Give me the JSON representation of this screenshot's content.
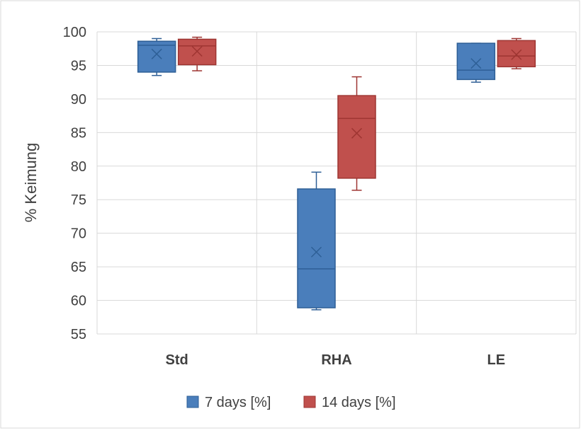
{
  "chart_data": {
    "type": "box",
    "title": "",
    "xlabel": "",
    "ylabel": "% Keimung",
    "ylim": [
      55,
      100
    ],
    "yticks": [
      "55",
      "60",
      "65",
      "70",
      "75",
      "80",
      "85",
      "90",
      "95",
      "100"
    ],
    "categories": [
      "Std",
      "RHA",
      "LE"
    ],
    "grid": true,
    "legend_position": "bottom",
    "series": [
      {
        "name": "7 days [%]",
        "color": "#4a7ebb",
        "boxes": [
          {
            "min": 93.5,
            "q1": 94.0,
            "median": 98.0,
            "q3": 98.6,
            "max": 99.0,
            "mean": 96.7
          },
          {
            "min": 58.6,
            "q1": 58.9,
            "median": 64.7,
            "q3": 76.6,
            "max": 79.1,
            "mean": 67.2
          },
          {
            "min": 92.5,
            "q1": 92.9,
            "median": 94.3,
            "q3": 98.3,
            "max": 98.3,
            "mean": 95.3
          }
        ]
      },
      {
        "name": "14 days [%]",
        "color": "#c0504d",
        "boxes": [
          {
            "min": 94.2,
            "q1": 95.1,
            "median": 97.9,
            "q3": 98.9,
            "max": 99.2,
            "mean": 97.1
          },
          {
            "min": 76.4,
            "q1": 78.2,
            "median": 87.1,
            "q3": 90.5,
            "max": 93.3,
            "mean": 84.9
          },
          {
            "min": 94.5,
            "q1": 94.8,
            "median": 96.4,
            "q3": 98.7,
            "max": 99.0,
            "mean": 96.6
          }
        ]
      }
    ]
  }
}
